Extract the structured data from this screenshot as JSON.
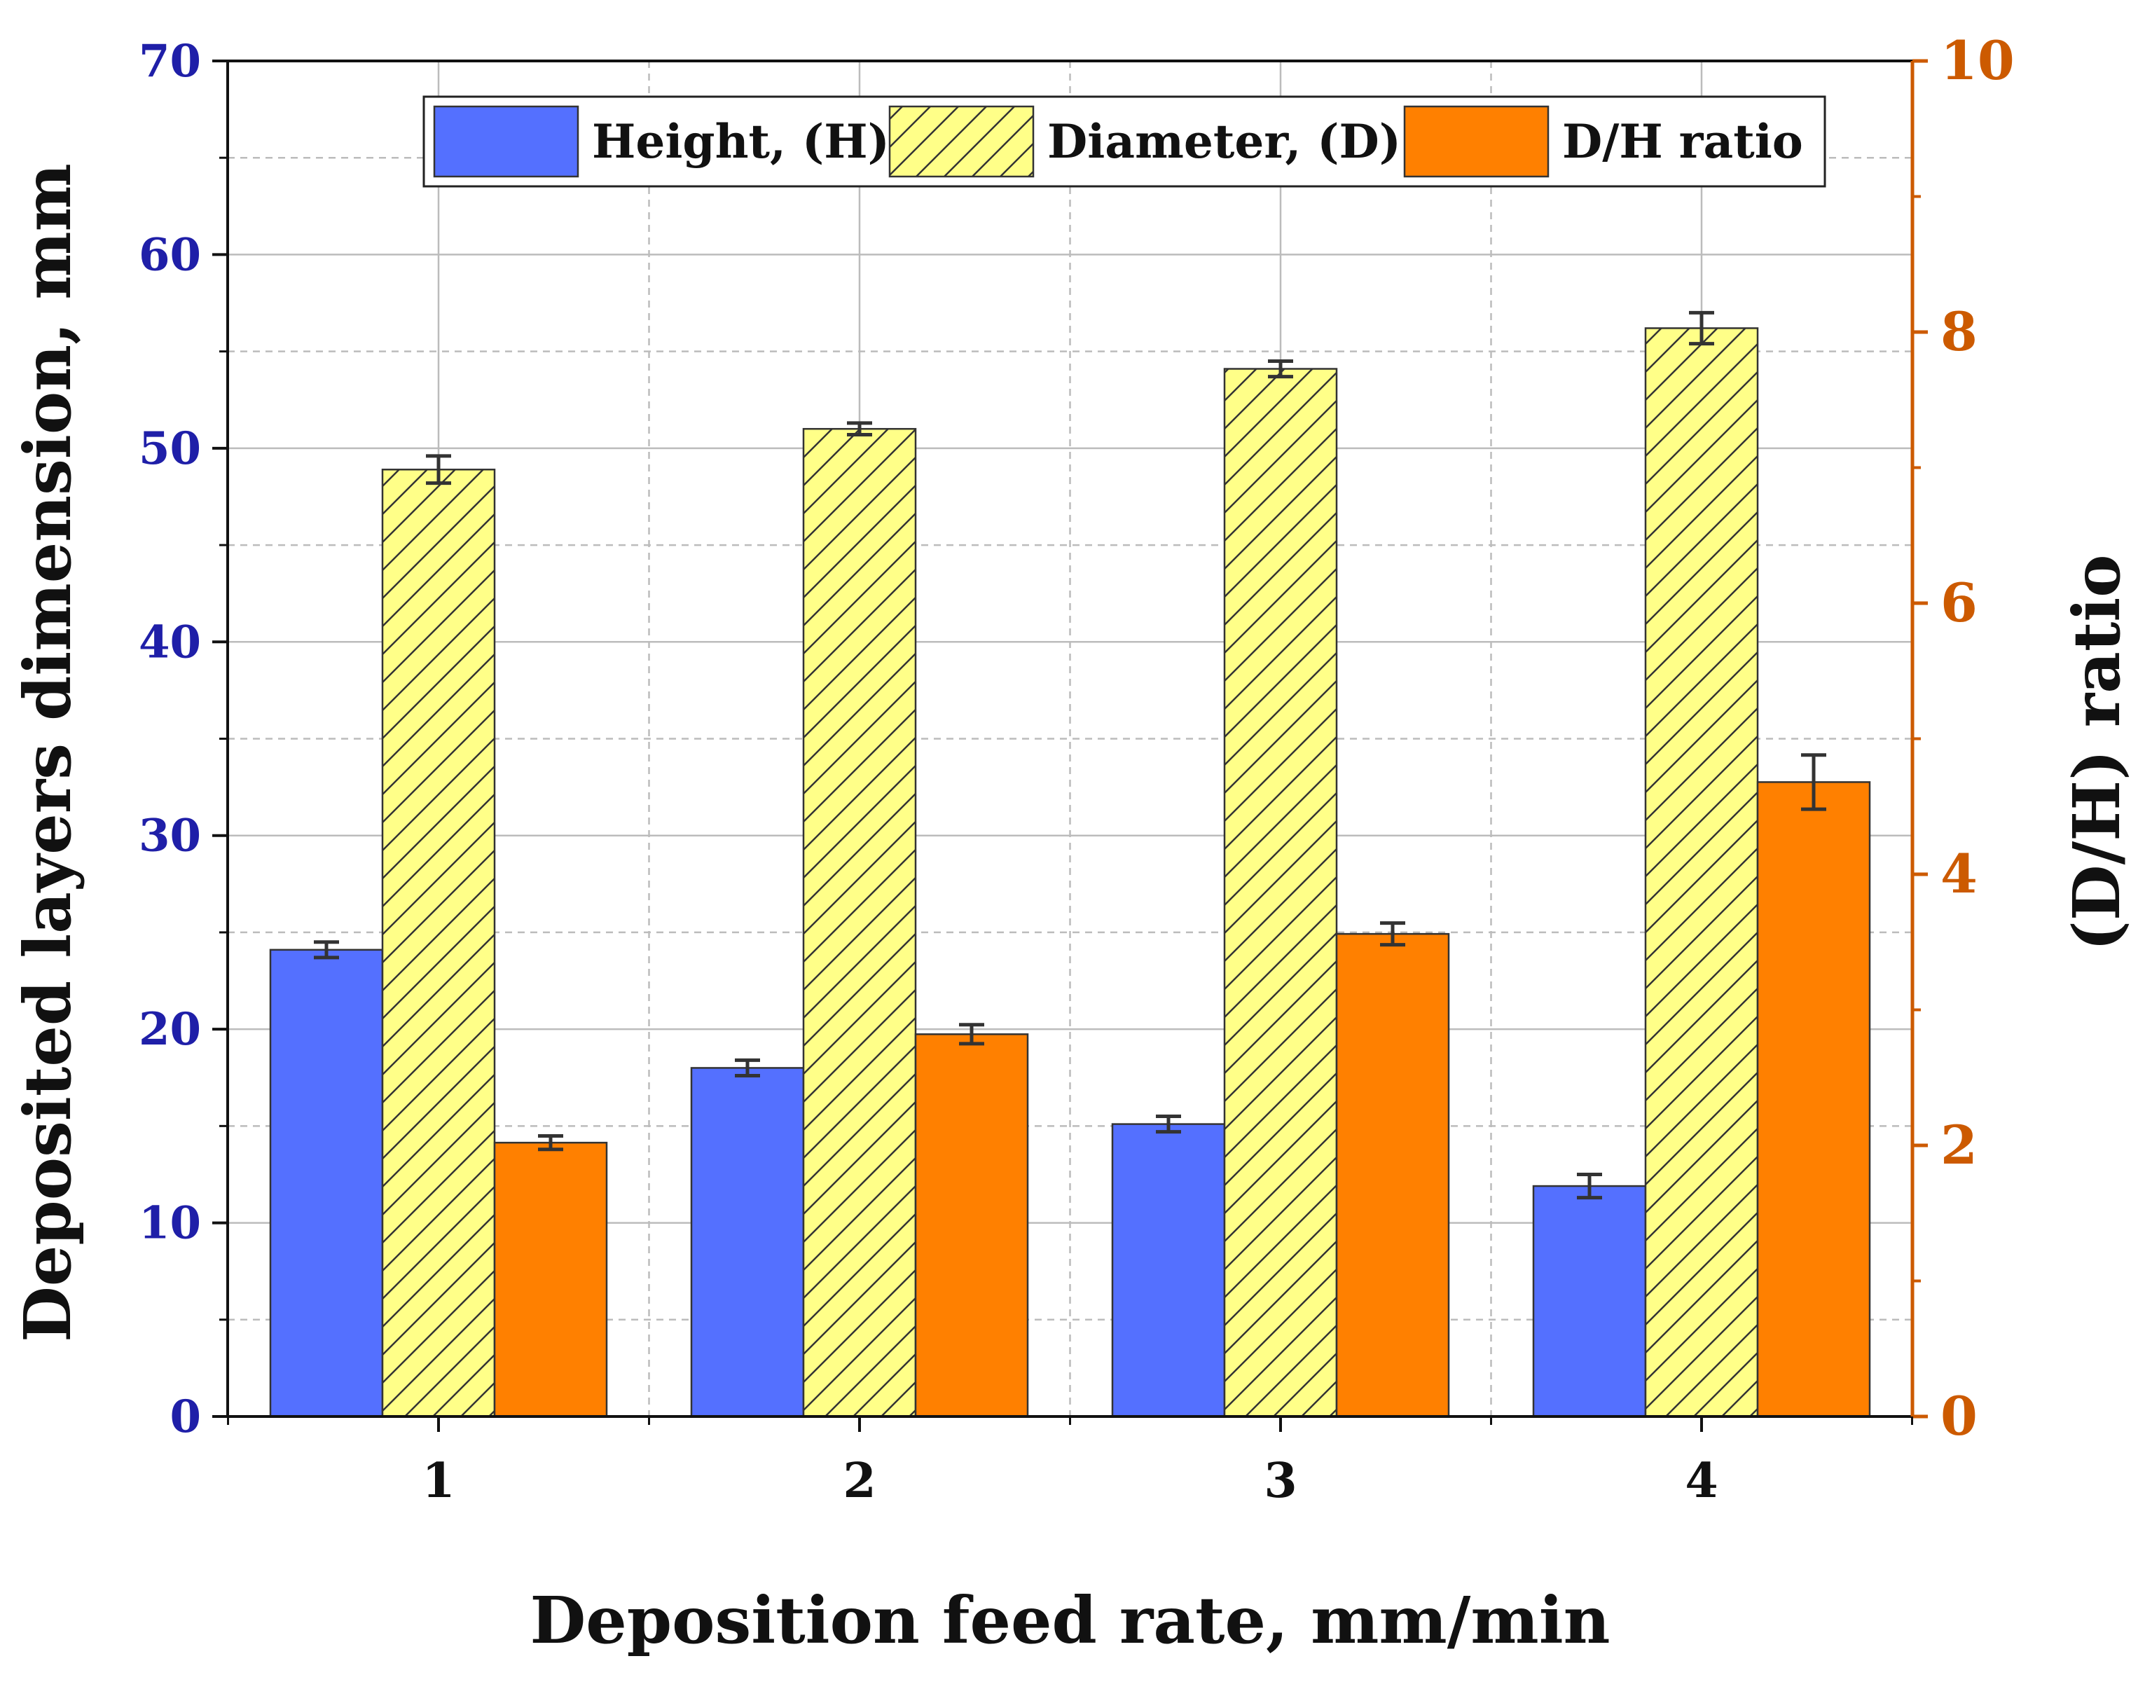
{
  "chart_data": {
    "type": "bar",
    "title": "",
    "xlabel": "Deposition feed rate, mm/min",
    "ylabel": "Deposited layers dimension, mm",
    "y2label": "(D/H) ratio",
    "categories": [
      "1",
      "2",
      "3",
      "4"
    ],
    "ylim": [
      0,
      70
    ],
    "yticks": [
      "0",
      "10",
      "20",
      "30",
      "40",
      "50",
      "60",
      "70"
    ],
    "y2lim": [
      0,
      10
    ],
    "y2ticks": [
      "0",
      "2",
      "4",
      "6",
      "8",
      "10"
    ],
    "grid": true,
    "legend_position": "top",
    "series": [
      {
        "name": "Height, (H)",
        "axis": "left",
        "values": [
          24.1,
          18.0,
          15.1,
          11.9
        ],
        "errors": [
          0.4,
          0.4,
          0.4,
          0.6
        ],
        "color": "#5470ff",
        "pattern": "solid"
      },
      {
        "name": "Diameter, (D)",
        "axis": "left",
        "values": [
          48.9,
          51.0,
          54.1,
          56.2
        ],
        "errors": [
          0.7,
          0.3,
          0.4,
          0.8
        ],
        "color": "#ffff88",
        "pattern": "hatch"
      },
      {
        "name": "D/H ratio",
        "axis": "right",
        "values": [
          2.02,
          2.82,
          3.56,
          4.68
        ],
        "errors": [
          0.05,
          0.07,
          0.08,
          0.2
        ],
        "color": "#ff8000",
        "pattern": "solid"
      }
    ],
    "colors": {
      "left_axis": "#1f1fa8",
      "right_axis": "#cc5a00",
      "axes": "#111111",
      "grid": "#bcbcbc",
      "error_bar": "#333333"
    }
  }
}
